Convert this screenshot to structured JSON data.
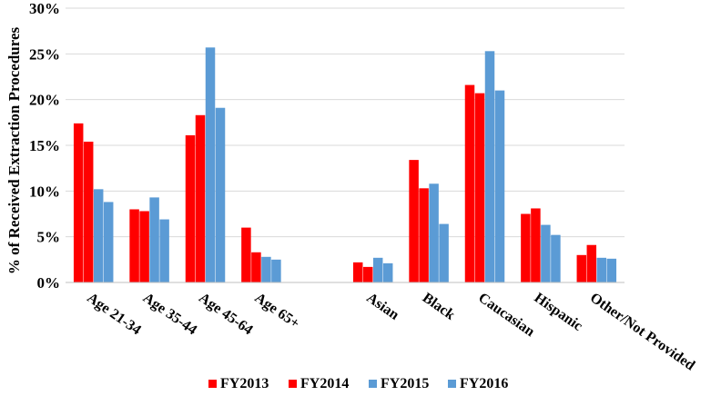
{
  "chart_data": {
    "type": "bar",
    "ylabel": "% of Received Extraction Procedures",
    "ylim": [
      0,
      30
    ],
    "yticks": [
      "0%",
      "5%",
      "10%",
      "15%",
      "20%",
      "25%",
      "30%"
    ],
    "grid": true,
    "legend_position": "bottom",
    "categories": [
      "Age 21-34",
      "Age 35-44",
      "Age 45-64",
      "Age 65+",
      "",
      "Asian",
      "Black",
      "Caucasian",
      "Hispanic",
      "Other/Not Provided"
    ],
    "series": [
      {
        "name": "FY2013",
        "color": "#ff0000",
        "values": [
          17.4,
          8.0,
          16.1,
          6.0,
          null,
          2.2,
          13.4,
          21.6,
          7.5,
          3.0
        ]
      },
      {
        "name": "FY2014",
        "color": "#ff0000",
        "values": [
          15.4,
          7.8,
          18.3,
          3.3,
          null,
          1.7,
          10.3,
          20.7,
          8.1,
          4.1
        ]
      },
      {
        "name": "FY2015",
        "color": "#5b9bd5",
        "values": [
          10.2,
          9.3,
          25.7,
          2.8,
          null,
          2.7,
          10.8,
          25.3,
          6.3,
          2.7
        ]
      },
      {
        "name": "FY2016",
        "color": "#5b9bd5",
        "values": [
          8.8,
          6.9,
          19.1,
          2.5,
          null,
          2.1,
          6.4,
          21.0,
          5.2,
          2.6
        ]
      }
    ]
  }
}
